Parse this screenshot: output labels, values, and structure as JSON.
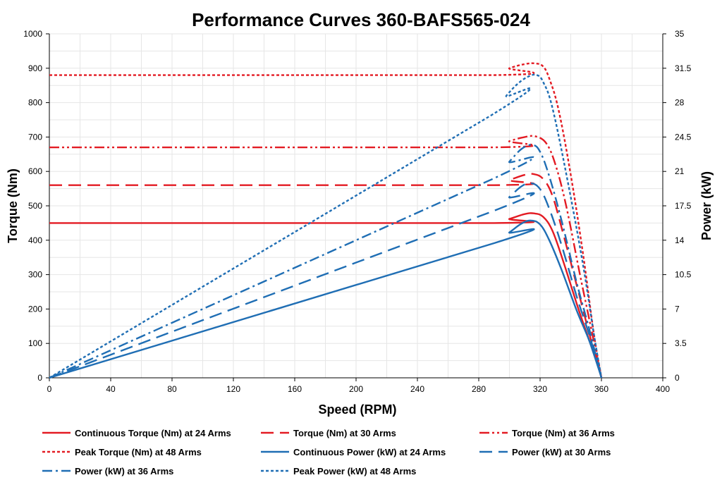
{
  "chart_data": {
    "type": "line",
    "title": "Performance Curves 360-BAFS565-024",
    "xlabel": "Speed (RPM)",
    "ylabel": "Torque (Nm)",
    "y2label": "Power (kW)",
    "xlim": [
      0,
      400
    ],
    "ylim": [
      0,
      1000
    ],
    "y2lim": [
      0,
      35
    ],
    "x_ticks": [
      "0",
      "40",
      "80",
      "120",
      "160",
      "200",
      "240",
      "280",
      "320",
      "360",
      "400"
    ],
    "y_ticks": [
      "0",
      "100",
      "200",
      "300",
      "400",
      "500",
      "600",
      "700",
      "800",
      "900",
      "1000"
    ],
    "y2_ticks": [
      "0",
      "3.5",
      "7",
      "10.5",
      "14",
      "17.5",
      "21",
      "24.5",
      "28",
      "31.5",
      "35"
    ],
    "grid": true,
    "legend_position": "bottom",
    "series": [
      {
        "name": "Continuous Torque (Nm) at 24 Arms",
        "axis": "left",
        "color": "#e31b23",
        "dash": "solid",
        "x": [
          0,
          290,
          300,
          310,
          316,
          322,
          328,
          335,
          345,
          352,
          358,
          360
        ],
        "y": [
          450,
          450,
          462,
          476,
          478,
          468,
          428,
          340,
          200,
          110,
          30,
          0
        ]
      },
      {
        "name": "Torque (Nm) at 30 Arms",
        "axis": "left",
        "color": "#e31b23",
        "dash": "long-dash",
        "x": [
          0,
          290,
          300,
          310,
          316,
          322,
          328,
          335,
          345,
          352,
          358,
          360
        ],
        "y": [
          560,
          560,
          575,
          590,
          592,
          578,
          530,
          420,
          250,
          130,
          35,
          0
        ]
      },
      {
        "name": "Torque (Nm) at 36 Arms",
        "axis": "left",
        "color": "#e31b23",
        "dash": "dash-dot-dot",
        "x": [
          0,
          290,
          300,
          310,
          317,
          324,
          330,
          337,
          346,
          353,
          358,
          360
        ],
        "y": [
          670,
          670,
          688,
          700,
          702,
          682,
          620,
          500,
          300,
          150,
          40,
          0
        ]
      },
      {
        "name": "Peak Torque (Nm) at 48 Arms",
        "axis": "left",
        "color": "#e31b23",
        "dash": "short-dash",
        "x": [
          0,
          290,
          300,
          310,
          317,
          322,
          326,
          332,
          340,
          348,
          355,
          360
        ],
        "y": [
          880,
          880,
          900,
          912,
          914,
          905,
          870,
          780,
          590,
          360,
          130,
          0
        ]
      },
      {
        "name": "Continuous Power (kW) at 24 Arms",
        "axis": "right",
        "color": "#1f6eb4",
        "dash": "solid",
        "x": [
          0,
          290,
          300,
          308,
          314,
          320,
          326,
          334,
          344,
          352,
          358,
          360
        ],
        "y": [
          0,
          13.7,
          14.8,
          15.7,
          16.0,
          15.6,
          14.0,
          11.0,
          6.8,
          3.8,
          1.0,
          0
        ]
      },
      {
        "name": "Power (kW) at 30 Arms",
        "axis": "right",
        "color": "#1f6eb4",
        "dash": "long-dash",
        "x": [
          0,
          290,
          300,
          308,
          314,
          320,
          326,
          334,
          344,
          352,
          358,
          360
        ],
        "y": [
          0,
          17.0,
          18.4,
          19.5,
          19.8,
          19.2,
          17.2,
          13.5,
          8.2,
          4.4,
          1.1,
          0
        ]
      },
      {
        "name": "Power (kW) at 36 Arms",
        "axis": "right",
        "color": "#1f6eb4",
        "dash": "dash-dot",
        "x": [
          0,
          290,
          300,
          308,
          315,
          320,
          326,
          334,
          344,
          352,
          358,
          360
        ],
        "y": [
          0,
          20.3,
          22.0,
          23.3,
          23.7,
          23.0,
          20.5,
          16.0,
          9.6,
          5.0,
          1.2,
          0
        ]
      },
      {
        "name": "Peak Power (kW) at 48 Arms",
        "axis": "right",
        "color": "#1f6eb4",
        "dash": "short-dash",
        "x": [
          0,
          288,
          298,
          306,
          313,
          318,
          322,
          328,
          338,
          348,
          355,
          360
        ],
        "y": [
          0,
          26.7,
          28.7,
          30.0,
          30.7,
          30.8,
          30.1,
          27.5,
          20.0,
          11.5,
          4.5,
          0
        ]
      }
    ]
  }
}
